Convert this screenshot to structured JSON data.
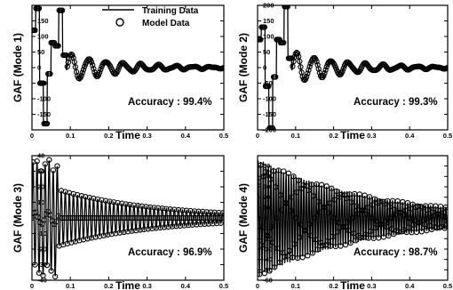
{
  "legend": {
    "line_label": "Training Data",
    "marker_label": "Model Data"
  },
  "chart_data": [
    {
      "type": "line",
      "ylabel": "GAF (Mode 1)",
      "xlabel": "Time",
      "annotation": "Accuracy : 99.4%",
      "xlim": [
        0,
        0.5
      ],
      "ylim": [
        -200,
        200
      ],
      "x_ticks": [
        "0",
        "0.1",
        "0.2",
        "0.3",
        "0.4",
        "0.5"
      ],
      "y_ticks": [
        "150",
        "100",
        "50",
        "0",
        "-50",
        "-100",
        "-150"
      ],
      "series": [
        {
          "name": "Training Data",
          "style": "line"
        },
        {
          "name": "Model Data",
          "style": "circle-markers"
        }
      ],
      "x": [
        0,
        0.01,
        0.02,
        0.03,
        0.04,
        0.05,
        0.06,
        0.07,
        0.08,
        0.1,
        0.12,
        0.14,
        0.16,
        0.2,
        0.25,
        0.3,
        0.35,
        0.4,
        0.45,
        0.5
      ],
      "y": [
        100,
        90,
        -150,
        -40,
        60,
        40,
        185,
        40,
        -90,
        40,
        30,
        50,
        20,
        15,
        10,
        5,
        3,
        2,
        1,
        0
      ]
    },
    {
      "type": "line",
      "ylabel": "GAF (Mode 2)",
      "xlabel": "Time",
      "annotation": "Accuracy : 99.3%",
      "xlim": [
        0,
        0.5
      ],
      "ylim": [
        -200,
        200
      ],
      "x_ticks": [
        "0",
        "0.1",
        "0.2",
        "0.3",
        "0.4",
        "0.5"
      ],
      "y_ticks": [
        "200",
        "150",
        "100",
        "50",
        "0",
        "-50",
        "-100",
        "-150",
        "-200"
      ],
      "series": [
        {
          "name": "Training Data",
          "style": "line"
        },
        {
          "name": "Model Data",
          "style": "circle-markers"
        }
      ],
      "x": [
        0,
        0.01,
        0.02,
        0.03,
        0.04,
        0.05,
        0.06,
        0.07,
        0.08,
        0.1,
        0.12,
        0.14,
        0.16,
        0.2,
        0.25,
        0.3,
        0.35,
        0.4,
        0.45,
        0.5
      ],
      "y": [
        100,
        80,
        -195,
        -40,
        80,
        60,
        200,
        30,
        -100,
        45,
        40,
        60,
        25,
        20,
        12,
        6,
        4,
        2,
        1,
        0
      ]
    },
    {
      "type": "line",
      "ylabel": "GAF (Mode 3)",
      "xlabel": "Time",
      "annotation": "Accuracy : 96.9%",
      "xlim": [
        0,
        0.5
      ],
      "ylim": [
        -40,
        40
      ],
      "x_ticks": [
        "0",
        "0.1",
        "0.2",
        "0.3",
        "0.4",
        "0.5"
      ],
      "y_ticks": [
        "40",
        "30",
        "20",
        "10",
        "0",
        "-10",
        "-20",
        "-30",
        "-40"
      ],
      "series": [
        {
          "name": "Training Data",
          "style": "line"
        },
        {
          "name": "Model Data",
          "style": "circle-markers"
        }
      ],
      "x": [
        0,
        0.01,
        0.02,
        0.03,
        0.04,
        0.05,
        0.06,
        0.08,
        0.1,
        0.15,
        0.2,
        0.25,
        0.3,
        0.35,
        0.4,
        0.45,
        0.5
      ],
      "y": [
        10,
        40,
        -30,
        28,
        -28,
        30,
        -32,
        15,
        -15,
        10,
        -8,
        7,
        -6,
        5,
        -4,
        3,
        -2
      ]
    },
    {
      "type": "line",
      "ylabel": "GAF (Mode 4)",
      "xlabel": "Time",
      "annotation": "Accuracy : 98.7%",
      "xlim": [
        0,
        0.5
      ],
      "ylim": [
        -60,
        60
      ],
      "x_ticks": [
        "0",
        "0.1",
        "0.2",
        "0.3",
        "0.4",
        "0.5"
      ],
      "y_ticks": [
        "50",
        "40",
        "30",
        "20",
        "10",
        "0",
        "-10",
        "-20",
        "-30",
        "-40",
        "-50",
        "-60"
      ],
      "series": [
        {
          "name": "Training Data",
          "style": "line"
        },
        {
          "name": "Model Data",
          "style": "circle-markers"
        }
      ],
      "x": [
        0,
        0.02,
        0.04,
        0.06,
        0.08,
        0.1,
        0.15,
        0.2,
        0.25,
        0.3,
        0.35,
        0.4,
        0.45,
        0.5
      ],
      "y": [
        10,
        35,
        -40,
        50,
        -45,
        30,
        -25,
        22,
        -18,
        15,
        -12,
        10,
        -8,
        6
      ]
    }
  ]
}
